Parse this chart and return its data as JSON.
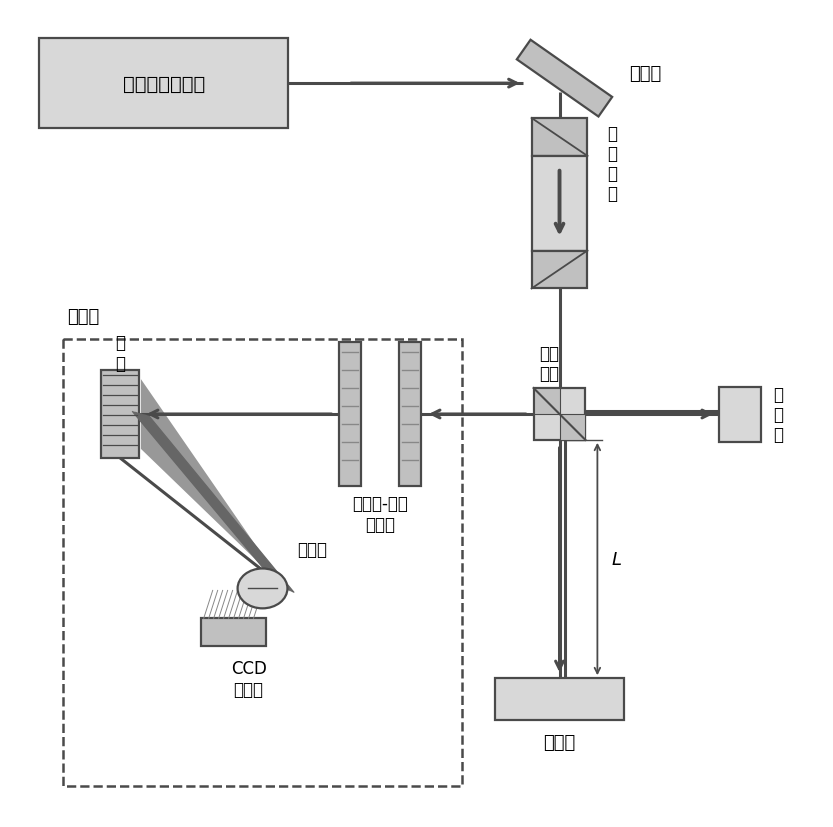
{
  "bg_color": "#ffffff",
  "line_color": "#4a4a4a",
  "box_fill_light": "#d8d8d8",
  "box_fill_mid": "#c0c0c0",
  "box_fill_dark": "#a8a8a8",
  "labels": {
    "laser": "飞秒激光频率梳",
    "mirror": "反射镇",
    "isolator_line1": "光",
    "isolator_line2": "隔",
    "isolator_line3": "离",
    "isolator_line4": "器",
    "beamsplitter_line1": "分光",
    "beamsplitter_line2": "棱镇",
    "reference_line1": "参",
    "reference_line2": "考",
    "reference_line3": "镇",
    "fabry": "法布里-珂罗\n标准具",
    "grating": "光\n栊",
    "collimator": "准直镇",
    "ccd": "CCD\n探测器",
    "spectrometer": "光谱仪",
    "measurement": "测量镇",
    "L_label": "L"
  },
  "figsize": [
    8.33,
    8.28
  ],
  "dpi": 100
}
